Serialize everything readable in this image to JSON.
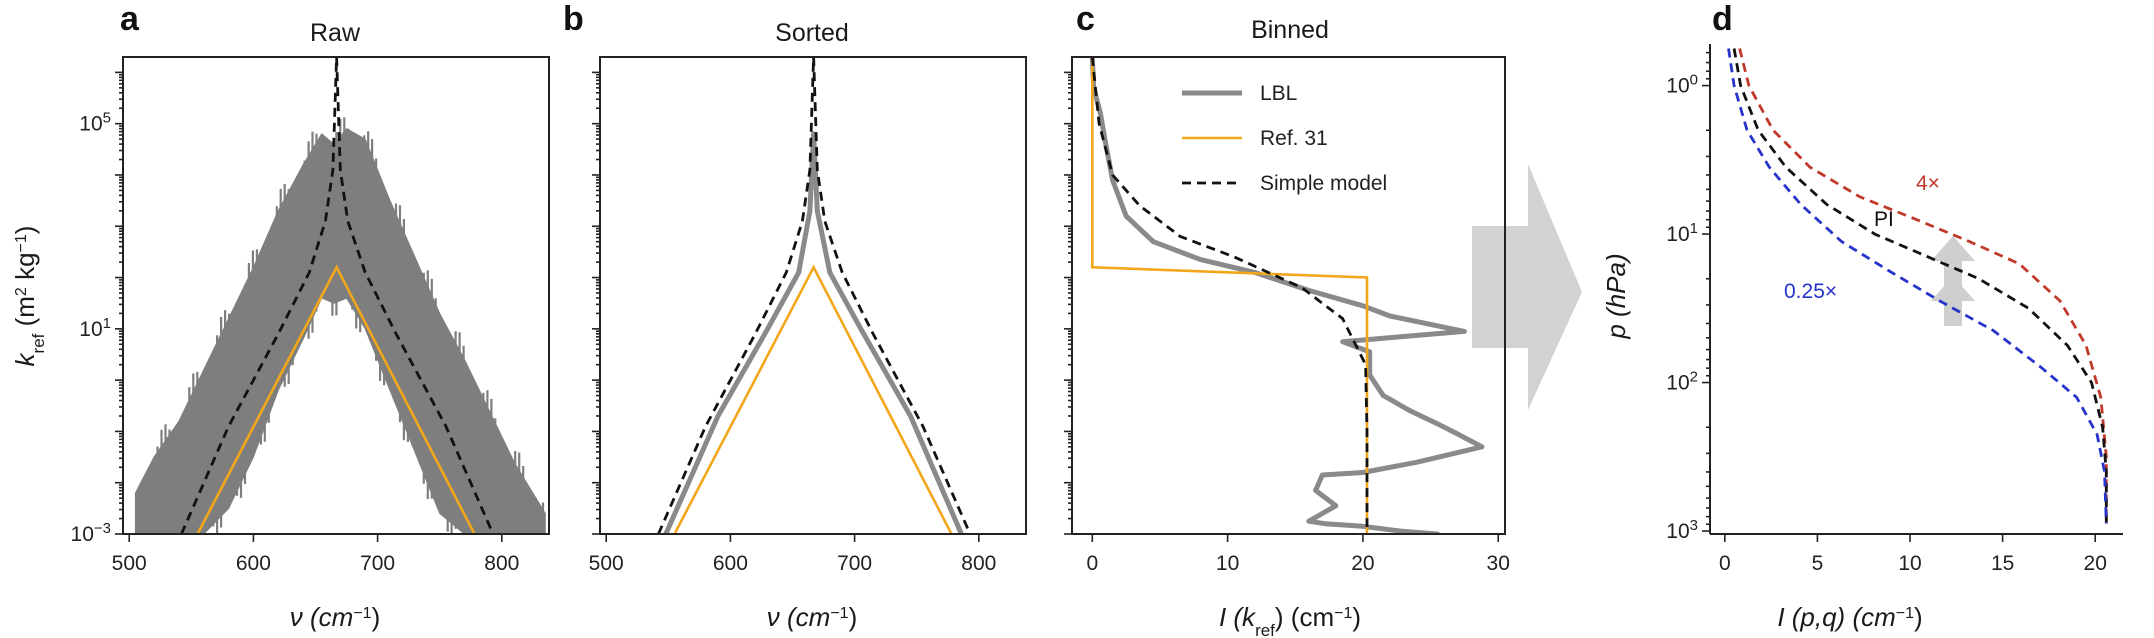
{
  "colors": {
    "lbl": "#8a8a8a",
    "lbl_fill": "#7e7e7e",
    "ref31": "#f2a71b",
    "simple": "#111111",
    "red": "#c0392b",
    "blue": "#2734c9",
    "arrow": "#cfcfcf",
    "black_curve": "#111111"
  },
  "panels": {
    "a": {
      "letter": "a",
      "title": "Raw",
      "xlabel_base": "ν (cm",
      "xlabel_sup": "−1",
      "xlabel_end": ")"
    },
    "b": {
      "letter": "b",
      "title": "Sorted",
      "xlabel_base": "ν (cm",
      "xlabel_sup": "−1",
      "xlabel_end": ")"
    },
    "c": {
      "letter": "c",
      "title": "Binned",
      "xlabel_base": "I (k",
      "xlabel_sub": "ref",
      "xlabel_mid": ") (cm",
      "xlabel_sup": "−1",
      "xlabel_end": ")"
    },
    "d": {
      "letter": "d",
      "title": "",
      "xlabel_base": "I (p,q) (cm",
      "xlabel_sup": "−1",
      "xlabel_end": ")",
      "ylabel": "p (hPa)"
    }
  },
  "ylabel_shared": {
    "base": "k",
    "sub": "ref",
    "rest": " (m",
    "sup1": "2",
    "mid": " kg",
    "sup2": "−1",
    "end": ")"
  },
  "legend": [
    {
      "label": "LBL",
      "style": "lbl"
    },
    {
      "label": "Ref. 31",
      "style": "ref31"
    },
    {
      "label": "Simple model",
      "style": "simple"
    }
  ],
  "annotations": {
    "four_x": "4×",
    "pi": "PI",
    "quarter_x": "0.25×"
  },
  "chart_data": [
    {
      "panel": "a",
      "type": "line",
      "title": "Raw",
      "xlabel": "ν (cm−1)",
      "ylabel": "kref (m2 kg−1)",
      "xlim": [
        495,
        838
      ],
      "ylim_log10": [
        -3,
        6.3
      ],
      "yscale": "log",
      "xticks": [
        500,
        600,
        700,
        800
      ],
      "yticks_labels": [
        "10−3",
        "101",
        "105"
      ],
      "ytick_exponents": [
        -3,
        1,
        5
      ],
      "series": [
        {
          "name": "LBL",
          "style": "band",
          "x": [
            505,
            520,
            540,
            560,
            580,
            600,
            620,
            640,
            655,
            665,
            675,
            690,
            710,
            730,
            750,
            770,
            790,
            810,
            835
          ],
          "upper_log10": [
            -2.2,
            -1.5,
            -0.8,
            0.2,
            1.2,
            2.2,
            3.3,
            4.2,
            4.8,
            4.6,
            4.9,
            4.7,
            3.5,
            2.4,
            1.3,
            0.4,
            -0.6,
            -1.6,
            -2.6
          ],
          "lower_log10": [
            -3,
            -3,
            -3,
            -3,
            -2.5,
            -1.5,
            -0.2,
            0.8,
            1.6,
            1.5,
            1.6,
            1.0,
            -0.2,
            -1.4,
            -2.6,
            -3,
            -3,
            -3,
            -3
          ]
        },
        {
          "name": "Ref. 31",
          "style": "ref31",
          "x": [
            555,
            667,
            778
          ],
          "y_log10": [
            -3,
            2.2,
            -3
          ]
        },
        {
          "name": "Simple model",
          "style": "simple",
          "x": [
            542,
            580,
            620,
            645,
            658,
            664,
            667,
            670,
            676,
            690,
            715,
            755,
            793
          ],
          "y_log10": [
            -3,
            -0.9,
            0.9,
            2.1,
            3.1,
            4.1,
            6.3,
            4.1,
            3.1,
            2.1,
            0.9,
            -0.9,
            -3
          ]
        }
      ]
    },
    {
      "panel": "b",
      "type": "line",
      "title": "Sorted",
      "xlabel": "ν (cm−1)",
      "xlim": [
        495,
        838
      ],
      "ylim_log10": [
        -3,
        6.3
      ],
      "yscale": "log",
      "xticks": [
        500,
        600,
        700,
        800
      ],
      "series": [
        {
          "name": "LBL",
          "style": "lbl",
          "x": [
            548,
            590,
            630,
            655,
            664,
            667,
            670,
            680,
            705,
            745,
            786
          ],
          "y_log10": [
            -3,
            -0.7,
            1.0,
            2.1,
            3.3,
            4.8,
            3.3,
            2.1,
            1.0,
            -0.7,
            -3
          ]
        },
        {
          "name": "Ref. 31",
          "style": "ref31",
          "x": [
            555,
            667,
            778
          ],
          "y_log10": [
            -3,
            2.2,
            -3
          ]
        },
        {
          "name": "Simple model",
          "style": "simple",
          "x": [
            542,
            580,
            620,
            645,
            658,
            664,
            667,
            670,
            676,
            690,
            715,
            755,
            793
          ],
          "y_log10": [
            -3,
            -0.9,
            0.9,
            2.1,
            3.1,
            4.1,
            6.3,
            4.1,
            3.1,
            2.1,
            0.9,
            -0.9,
            -3
          ]
        }
      ]
    },
    {
      "panel": "c",
      "type": "line",
      "title": "Binned",
      "xlabel": "I (kref) (cm−1)",
      "xlim": [
        -1.5,
        30.5
      ],
      "ylim_log10": [
        -3,
        6.3
      ],
      "yscale": "log",
      "xticks": [
        0,
        10,
        20,
        30
      ],
      "series": [
        {
          "name": "LBL",
          "style": "lbl",
          "x": [
            0,
            0.1,
            0.6,
            1.0,
            1.5,
            2.5,
            4.5,
            8.0,
            12.0,
            16.0,
            20.0,
            22.0,
            27.5,
            23.0,
            18.5,
            20.5,
            20.5,
            21.5,
            23.5,
            25.5,
            27.0,
            28.8,
            24.0,
            20.0,
            17.0,
            16.5,
            18.0,
            17.0,
            16.0,
            17.2,
            20.0,
            23.0,
            25.5,
            26.5
          ],
          "y_log10": [
            6.3,
            5.7,
            5.2,
            4.6,
            3.9,
            3.2,
            2.7,
            2.35,
            2.1,
            1.75,
            1.45,
            1.25,
            0.95,
            0.85,
            0.75,
            0.55,
            0.1,
            -0.3,
            -0.6,
            -0.85,
            -1.05,
            -1.3,
            -1.6,
            -1.8,
            -1.85,
            -2.15,
            -2.45,
            -2.6,
            -2.75,
            -2.8,
            -2.85,
            -2.95,
            -3.0,
            -3.15
          ]
        },
        {
          "name": "Ref. 31",
          "style": "ref31",
          "x": [
            0,
            0,
            20.3,
            20.3
          ],
          "y_log10": [
            6.3,
            2.2,
            2.0,
            -3.2
          ]
        },
        {
          "name": "Simple model",
          "style": "simple",
          "x": [
            0,
            0.5,
            1.5,
            3.5,
            6.5,
            10.5,
            15.5,
            18.5,
            20.2,
            20.3,
            20.3
          ],
          "y_log10": [
            6.3,
            5.0,
            4.0,
            3.4,
            2.8,
            2.4,
            1.8,
            1.2,
            0.3,
            -1.0,
            -3.2
          ]
        }
      ]
    },
    {
      "panel": "d",
      "type": "line",
      "xlabel": "I (p,q) (cm−1)",
      "ylabel": "p (hPa)",
      "xlim": [
        -0.8,
        21.5
      ],
      "ylim_log10_p": [
        -0.28,
        3.02
      ],
      "yscale": "log",
      "yaxis_inverted": true,
      "xticks": [
        0,
        5,
        10,
        15,
        20
      ],
      "yticks_labels": [
        "100",
        "101",
        "102",
        "103"
      ],
      "ytick_exponents": [
        0,
        1,
        2,
        3
      ],
      "series": [
        {
          "name": "4×",
          "style": "red",
          "x": [
            0.8,
            1.3,
            2.6,
            4.6,
            7.3,
            10.3,
            13.2,
            15.9,
            18.1,
            19.5,
            20.3,
            20.6,
            20.6
          ],
          "p_log10": [
            -0.25,
            0.0,
            0.3,
            0.55,
            0.75,
            0.9,
            1.05,
            1.2,
            1.45,
            1.75,
            2.1,
            2.5,
            2.95
          ]
        },
        {
          "name": "PI",
          "style": "black",
          "x": [
            0.5,
            0.85,
            1.8,
            3.3,
            5.5,
            8.1,
            10.9,
            13.7,
            16.4,
            18.5,
            19.8,
            20.4,
            20.6,
            20.6
          ],
          "p_log10": [
            -0.25,
            0.0,
            0.3,
            0.55,
            0.8,
            1.0,
            1.15,
            1.3,
            1.5,
            1.75,
            2.0,
            2.3,
            2.6,
            2.95
          ]
        },
        {
          "name": "0.25×",
          "style": "blue",
          "x": [
            0.2,
            0.5,
            1.2,
            2.4,
            4.1,
            6.3,
            8.9,
            11.6,
            14.5,
            17.1,
            19.0,
            20.1,
            20.5,
            20.6
          ],
          "p_log10": [
            -0.25,
            0.0,
            0.3,
            0.55,
            0.8,
            1.05,
            1.25,
            1.45,
            1.65,
            1.9,
            2.1,
            2.35,
            2.6,
            2.95
          ]
        }
      ]
    }
  ]
}
